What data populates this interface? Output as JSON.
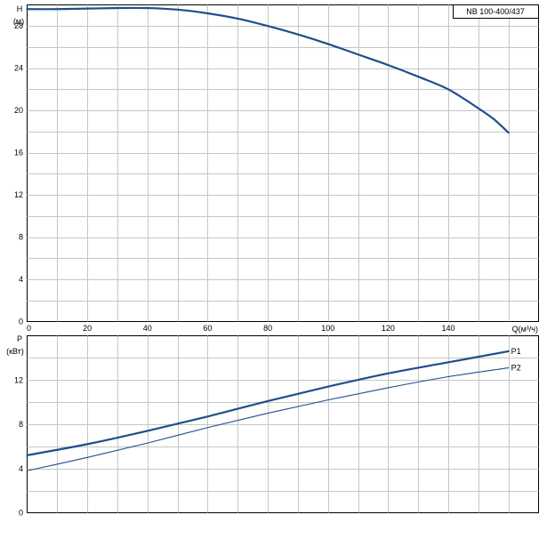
{
  "chart_data": [
    {
      "type": "line",
      "title": "NB 100-400/437",
      "ylabel_symbol": "H",
      "yunit": "(м)",
      "xlabel": "Q(м³/ч)",
      "xlim": [
        0,
        170
      ],
      "ylim": [
        0,
        30
      ],
      "xticks": [
        0,
        20,
        40,
        60,
        80,
        100,
        120,
        140
      ],
      "yticks": [
        0,
        4,
        8,
        12,
        16,
        20,
        24,
        28
      ],
      "grid": true,
      "series": [
        {
          "color": "#1f4e8c",
          "x": [
            0,
            10,
            20,
            30,
            40,
            50,
            60,
            70,
            80,
            90,
            100,
            110,
            120,
            130,
            140,
            150,
            155,
            160
          ],
          "y": [
            29.6,
            29.6,
            29.65,
            29.7,
            29.7,
            29.55,
            29.2,
            28.7,
            28.0,
            27.2,
            26.3,
            25.3,
            24.3,
            23.2,
            22.0,
            20.2,
            19.2,
            17.9
          ]
        }
      ]
    },
    {
      "type": "line",
      "ylabel_symbol": "P",
      "yunit": "(кВт)",
      "xlim": [
        0,
        170
      ],
      "ylim": [
        0,
        16
      ],
      "xticks": [
        0,
        20,
        40,
        60,
        80,
        100,
        120,
        140
      ],
      "yticks": [
        0,
        4,
        8,
        12
      ],
      "grid": true,
      "series": [
        {
          "name": "P1",
          "color": "#1f4e8c",
          "x": [
            0,
            20,
            40,
            60,
            80,
            100,
            120,
            140,
            160
          ],
          "y": [
            5.2,
            6.2,
            7.4,
            8.7,
            10.1,
            11.4,
            12.6,
            13.6,
            14.6
          ]
        },
        {
          "name": "P2",
          "color": "#1f4e8c",
          "x": [
            0,
            20,
            40,
            60,
            80,
            100,
            120,
            140,
            160
          ],
          "y": [
            3.8,
            5.0,
            6.3,
            7.7,
            9.0,
            10.2,
            11.3,
            12.3,
            13.1
          ]
        }
      ]
    }
  ]
}
